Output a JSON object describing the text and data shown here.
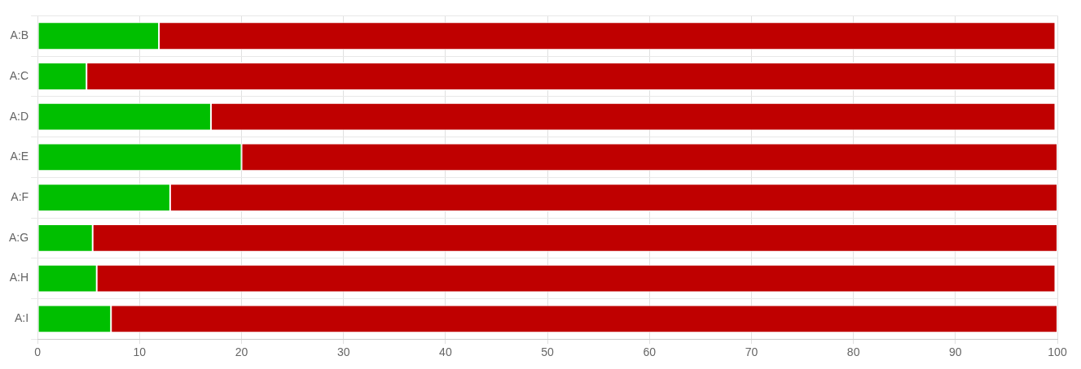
{
  "chart_data": {
    "type": "bar",
    "orientation": "horizontal",
    "stacked": true,
    "categories": [
      "A:B",
      "A:C",
      "A:D",
      "A:E",
      "A:F",
      "A:G",
      "A:H",
      "A:I"
    ],
    "series": [
      {
        "color": "#00bf00",
        "values": [
          11.9,
          4.8,
          17,
          20,
          13,
          5.4,
          5.8,
          7.2
        ]
      },
      {
        "color": "#bf0000",
        "values": [
          87.9,
          95,
          82.8,
          80,
          87,
          94.6,
          94,
          92.8
        ]
      }
    ],
    "xlim": [
      0,
      100
    ],
    "xticks": [
      0,
      10,
      20,
      30,
      40,
      50,
      60,
      70,
      80,
      90,
      100
    ],
    "grid": true,
    "legend": false
  }
}
